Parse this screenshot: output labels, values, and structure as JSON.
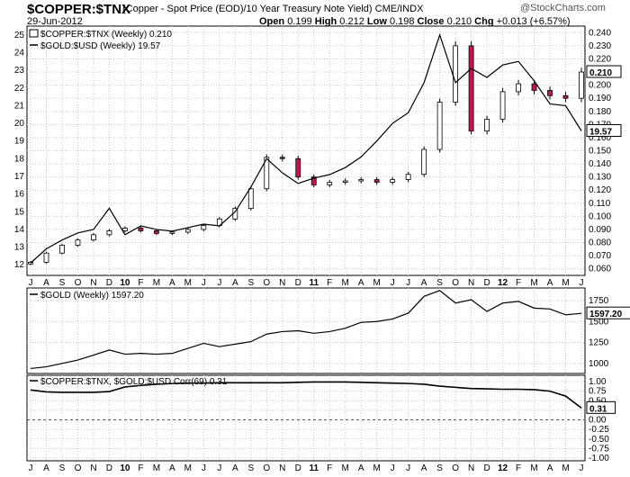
{
  "header": {
    "symbol": "$COPPER:$TNX",
    "description": "(Copper - Spot Price (EOD)/10 Year Treasury Note Yield)",
    "exchange": "CME/INDX",
    "date": "29-Jun-2012",
    "open_label": "Open",
    "open": "0.199",
    "high_label": "High",
    "high": "0.212",
    "low_label": "Low",
    "low": "0.198",
    "close_label": "Close",
    "close": "0.210",
    "chg_label": "Chg",
    "chg": "+0.013 (+6.57%)",
    "brand": "@StockCharts.com"
  },
  "colors": {
    "up": "#ffffff",
    "down": "#d0104c",
    "line": "#000000"
  },
  "x_axis": {
    "labels": [
      "J",
      "A",
      "S",
      "O",
      "N",
      "D",
      "10",
      "F",
      "M",
      "A",
      "M",
      "J",
      "J",
      "A",
      "S",
      "O",
      "N",
      "D",
      "11",
      "F",
      "M",
      "A",
      "M",
      "J",
      "J",
      "A",
      "S",
      "O",
      "N",
      "D",
      "12",
      "F",
      "M",
      "A",
      "M",
      "J"
    ]
  },
  "chart_data": [
    {
      "type": "candlestick",
      "panel": "price",
      "series": [
        {
          "name": "$COPPER:$TNX (Weekly) 0.210",
          "kind": "candles",
          "values": [
            0.065,
            0.072,
            0.078,
            0.082,
            0.086,
            0.089,
            0.091,
            0.089,
            0.087,
            0.088,
            0.09,
            0.093,
            0.098,
            0.106,
            0.121,
            0.145,
            0.144,
            0.13,
            0.124,
            0.126,
            0.127,
            0.128,
            0.126,
            0.128,
            0.132,
            0.151,
            0.187,
            0.23,
            0.165,
            0.174,
            0.195,
            0.201,
            0.196,
            0.192,
            0.19,
            0.21
          ]
        },
        {
          "name": "$GOLD:$USD (Weekly) 19.57",
          "kind": "line",
          "values": [
            12.1,
            12.9,
            13.4,
            13.8,
            14.0,
            15.2,
            13.7,
            14.2,
            14.0,
            13.9,
            14.1,
            14.3,
            14.2,
            15.0,
            16.4,
            18.0,
            17.2,
            16.6,
            16.9,
            17.1,
            17.5,
            18.1,
            19.0,
            20.0,
            20.6,
            22.3,
            25.0,
            22.3,
            23.1,
            22.6,
            23.3,
            23.5,
            22.4,
            21.1,
            21.0,
            19.57
          ]
        }
      ],
      "y_left": {
        "ticks": [
          12,
          13,
          14,
          15,
          16,
          17,
          18,
          19,
          20,
          21,
          22,
          23,
          24,
          25
        ]
      },
      "y_right": {
        "ticks": [
          "0.060",
          "0.070",
          "0.080",
          "0.090",
          "0.100",
          "0.110",
          "0.120",
          "0.130",
          "0.140",
          "0.150",
          "0.160",
          "0.170",
          "0.180",
          "0.190",
          "0.200",
          "0.210",
          "0.220",
          "0.230",
          "0.240"
        ],
        "last": "0.210"
      },
      "last_left": "19.57"
    },
    {
      "type": "line",
      "panel": "gold",
      "series": [
        {
          "name": "$GOLD (Weekly) 1597.20",
          "values": [
            940,
            960,
            1000,
            1040,
            1100,
            1160,
            1110,
            1120,
            1110,
            1120,
            1180,
            1240,
            1200,
            1230,
            1260,
            1350,
            1380,
            1390,
            1360,
            1380,
            1420,
            1490,
            1500,
            1530,
            1600,
            1800,
            1870,
            1720,
            1760,
            1620,
            1720,
            1740,
            1660,
            1650,
            1580,
            1597.2
          ]
        }
      ],
      "y_right": {
        "ticks": [
          "1000",
          "1250",
          "1500",
          "1750"
        ],
        "last": "1597.20"
      }
    },
    {
      "type": "line",
      "panel": "correlation",
      "series": [
        {
          "name": "$COPPER:$TNX, $GOLD:$USD Corr(69) 0.31",
          "values": [
            0.78,
            0.73,
            0.72,
            0.72,
            0.72,
            0.74,
            0.86,
            0.9,
            0.93,
            0.95,
            0.96,
            0.96,
            0.97,
            0.97,
            0.97,
            0.97,
            0.97,
            0.98,
            0.99,
            0.99,
            0.99,
            0.98,
            0.97,
            0.96,
            0.95,
            0.93,
            0.88,
            0.85,
            0.82,
            0.81,
            0.8,
            0.8,
            0.79,
            0.75,
            0.62,
            0.31
          ]
        }
      ],
      "y_right": {
        "ticks": [
          "1.00",
          "0.75",
          "0.50",
          "0.25",
          "0.00",
          "-0.25",
          "-0.50",
          "-0.75",
          "-1.00"
        ],
        "last": "0.31"
      }
    }
  ]
}
